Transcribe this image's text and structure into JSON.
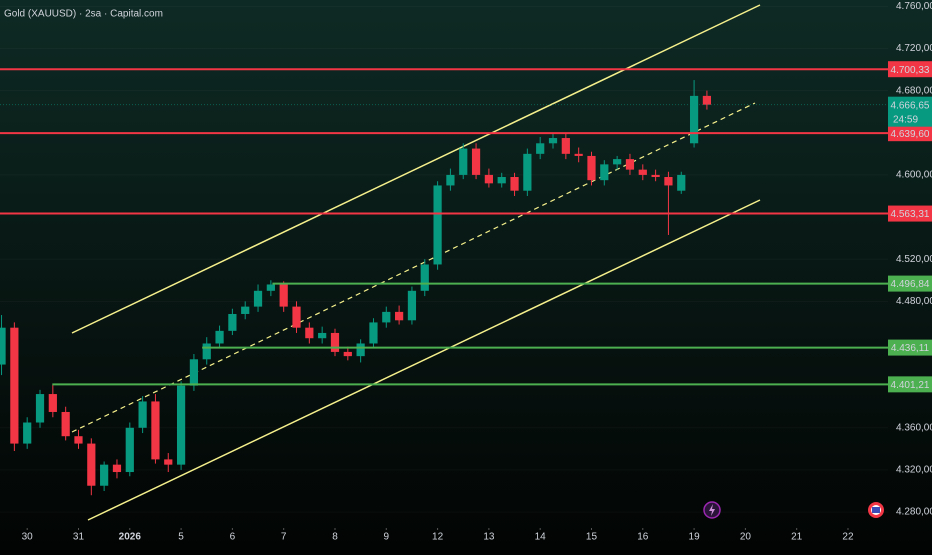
{
  "chart_data": {
    "type": "candlestick",
    "title": "Gold (XAUUSD) · 2sa · Capital.com",
    "x": [
      -0.5,
      -0.25,
      0,
      0.25,
      0.5,
      0.75,
      1,
      1.25,
      1.5,
      1.75,
      2,
      2.25,
      2.5,
      2.75,
      3,
      3.25,
      3.5,
      3.75,
      4,
      4.25,
      4.5,
      4.75,
      5,
      5.25,
      5.5,
      5.75,
      6,
      6.25,
      6.5,
      6.75,
      7,
      7.25,
      7.5,
      7.75,
      8,
      8.25,
      8.5,
      8.75,
      9,
      9.25,
      9.5,
      9.75,
      10,
      10.25,
      10.5,
      10.75,
      11,
      11.25,
      11.5,
      11.75,
      12,
      12.25,
      12.5,
      12.75,
      13,
      13.25
    ],
    "open": [
      4420,
      4455,
      4345,
      4365,
      4392,
      4375,
      4352,
      4345,
      4305,
      4325,
      4318,
      4360,
      4385,
      4330,
      4325,
      4400,
      4425,
      4440,
      4452,
      4468,
      4475,
      4490,
      4496,
      4475,
      4455,
      4445,
      4450,
      4432,
      4428,
      4440,
      4460,
      4470,
      4462,
      4490,
      4515,
      4590,
      4600,
      4625,
      4600,
      4592,
      4598,
      4585,
      4620,
      4630,
      4635,
      4620,
      4618,
      4595,
      4610,
      4615,
      4605,
      4600,
      4598,
      4585,
      4630,
      4675
    ],
    "high": [
      4467,
      4460,
      4370,
      4396,
      4401,
      4380,
      4358,
      4350,
      4328,
      4330,
      4365,
      4390,
      4392,
      4336,
      4404,
      4430,
      4446,
      4457,
      4473,
      4480,
      4496,
      4500,
      4499,
      4480,
      4460,
      4456,
      4454,
      4437,
      4444,
      4464,
      4475,
      4476,
      4494,
      4520,
      4594,
      4606,
      4630,
      4630,
      4606,
      4602,
      4602,
      4625,
      4636,
      4640,
      4640,
      4626,
      4622,
      4614,
      4618,
      4620,
      4610,
      4605,
      4603,
      4603,
      4690,
      4680
    ],
    "low": [
      4410,
      4338,
      4340,
      4360,
      4370,
      4348,
      4340,
      4296,
      4300,
      4312,
      4314,
      4355,
      4326,
      4318,
      4320,
      4395,
      4420,
      4436,
      4448,
      4463,
      4470,
      4485,
      4470,
      4450,
      4440,
      4440,
      4428,
      4424,
      4422,
      4436,
      4455,
      4458,
      4458,
      4485,
      4510,
      4585,
      4596,
      4596,
      4588,
      4588,
      4580,
      4580,
      4615,
      4625,
      4615,
      4612,
      4590,
      4590,
      4605,
      4600,
      4595,
      4594,
      4543,
      4582,
      4626,
      4662
    ],
    "close": [
      4455,
      4345,
      4365,
      4392,
      4375,
      4352,
      4345,
      4305,
      4325,
      4318,
      4360,
      4385,
      4330,
      4325,
      4400,
      4425,
      4440,
      4452,
      4468,
      4475,
      4490,
      4496,
      4475,
      4455,
      4445,
      4450,
      4432,
      4428,
      4440,
      4460,
      4470,
      4462,
      4490,
      4515,
      4590,
      4600,
      4625,
      4600,
      4592,
      4598,
      4585,
      4620,
      4630,
      4635,
      4620,
      4618,
      4595,
      4610,
      4615,
      4605,
      4600,
      4598,
      4590,
      4600,
      4675,
      4666.65
    ],
    "up_color": "#089981",
    "down_color": "#f23645",
    "xlim": [
      -0.53,
      16.78
    ],
    "xticks": [
      {
        "value": 0,
        "label": "30"
      },
      {
        "value": 1,
        "label": "31"
      },
      {
        "value": 2,
        "label": "2026"
      },
      {
        "value": 3,
        "label": "5"
      },
      {
        "value": 4,
        "label": "6"
      },
      {
        "value": 5,
        "label": "7"
      },
      {
        "value": 6,
        "label": "8"
      },
      {
        "value": 7,
        "label": "9"
      },
      {
        "value": 8,
        "label": "12"
      },
      {
        "value": 9,
        "label": "13"
      },
      {
        "value": 10,
        "label": "14"
      },
      {
        "value": 11,
        "label": "15"
      },
      {
        "value": 12,
        "label": "16"
      },
      {
        "value": 13,
        "label": "19"
      },
      {
        "value": 14,
        "label": "20"
      },
      {
        "value": 15,
        "label": "21"
      },
      {
        "value": 16,
        "label": "22"
      }
    ],
    "ylim": [
      4244,
      4766
    ],
    "yticks": [
      {
        "value": 4760,
        "label": "4.760,00"
      },
      {
        "value": 4720,
        "label": "4.720,00"
      },
      {
        "value": 4680,
        "label": "4.680,00"
      },
      {
        "value": 4600,
        "label": "4.600,00"
      },
      {
        "value": 4520,
        "label": "4.520,00"
      },
      {
        "value": 4480,
        "label": "4.480,00"
      },
      {
        "value": 4360,
        "label": "4.360,00"
      },
      {
        "value": 4320,
        "label": "4.320,00"
      },
      {
        "value": 4280,
        "label": "4.280,00"
      }
    ],
    "levels": [
      {
        "value": 4700.33,
        "label": "4.700,33",
        "color": "#f23645"
      },
      {
        "value": 4639.6,
        "label": "4.639,60",
        "color": "#f23645"
      },
      {
        "value": 4563.31,
        "label": "4.563,31",
        "color": "#f23645"
      },
      {
        "value": 4496.84,
        "label": "4.496,84",
        "color": "#4caf50",
        "x": 4.78
      },
      {
        "value": 4436.11,
        "label": "4.436,11",
        "color": "#4caf50",
        "x": 3.41
      },
      {
        "value": 4401.21,
        "label": "4.401,21",
        "color": "#4caf50",
        "x": 0.49
      }
    ],
    "last_price": {
      "value": 4666.65,
      "label": "4.666,65",
      "countdown": "24:59",
      "color": "#089981"
    }
  }
}
